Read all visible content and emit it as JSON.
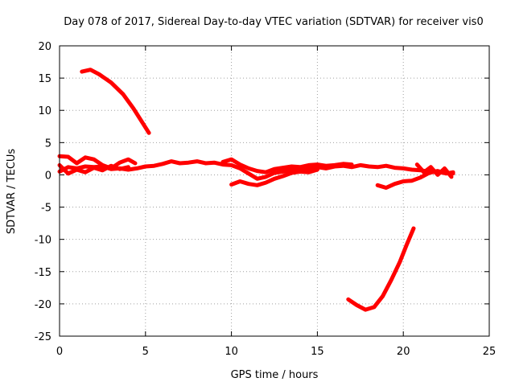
{
  "chart_data": {
    "type": "line",
    "title": "Day 078 of 2017, Sidereal Day-to-day VTEC variation (SDTVAR) for receiver vis0",
    "xlabel": "GPS time / hours",
    "ylabel": "SDTVAR / TECUs",
    "xlim": [
      0,
      25
    ],
    "ylim": [
      -25,
      20
    ],
    "xticks": [
      0,
      5,
      10,
      15,
      20,
      25
    ],
    "yticks": [
      -25,
      -20,
      -15,
      -10,
      -5,
      0,
      5,
      10,
      15,
      20
    ],
    "grid": true,
    "line_color": "#ff0000",
    "series": [
      {
        "name": "descending-arc",
        "points": [
          [
            1.3,
            16.0
          ],
          [
            1.8,
            16.3
          ],
          [
            2.3,
            15.6
          ],
          [
            3.0,
            14.3
          ],
          [
            3.7,
            12.5
          ],
          [
            4.3,
            10.3
          ],
          [
            4.8,
            8.2
          ],
          [
            5.2,
            6.5
          ]
        ]
      },
      {
        "name": "main-band-1",
        "points": [
          [
            0.0,
            2.9
          ],
          [
            0.5,
            2.8
          ],
          [
            1.0,
            1.8
          ],
          [
            1.5,
            2.7
          ],
          [
            2.0,
            2.4
          ],
          [
            2.5,
            1.5
          ],
          [
            3.0,
            1.0
          ],
          [
            3.5,
            1.9
          ],
          [
            4.0,
            2.4
          ],
          [
            4.4,
            1.8
          ]
        ]
      },
      {
        "name": "main-band-2",
        "points": [
          [
            0.0,
            0.5
          ],
          [
            0.5,
            1.2
          ],
          [
            1.0,
            1.0
          ],
          [
            1.5,
            1.3
          ],
          [
            2.0,
            1.2
          ],
          [
            2.5,
            1.3
          ],
          [
            3.0,
            0.9
          ],
          [
            3.5,
            1.0
          ],
          [
            4.0,
            0.8
          ],
          [
            4.5,
            1.0
          ],
          [
            5.0,
            1.3
          ],
          [
            5.5,
            1.4
          ],
          [
            6.0,
            1.7
          ],
          [
            6.5,
            2.1
          ],
          [
            7.0,
            1.8
          ],
          [
            7.5,
            1.9
          ],
          [
            8.0,
            2.1
          ],
          [
            8.5,
            1.8
          ],
          [
            9.0,
            1.9
          ],
          [
            9.5,
            1.6
          ],
          [
            10.0,
            1.5
          ],
          [
            10.5,
            1.0
          ],
          [
            11.0,
            0.2
          ],
          [
            11.5,
            -0.6
          ],
          [
            12.0,
            -0.3
          ],
          [
            12.5,
            0.3
          ],
          [
            13.0,
            0.5
          ],
          [
            13.5,
            0.8
          ],
          [
            14.0,
            0.6
          ],
          [
            14.5,
            0.9
          ],
          [
            15.0,
            1.2
          ],
          [
            15.5,
            1.0
          ],
          [
            16.0,
            1.3
          ],
          [
            16.5,
            1.4
          ],
          [
            17.0,
            1.2
          ],
          [
            17.5,
            1.5
          ],
          [
            18.0,
            1.3
          ],
          [
            18.5,
            1.2
          ],
          [
            19.0,
            1.4
          ],
          [
            19.5,
            1.1
          ],
          [
            20.0,
            1.0
          ],
          [
            20.5,
            0.8
          ],
          [
            21.0,
            0.7
          ],
          [
            21.5,
            0.5
          ],
          [
            22.0,
            0.4
          ],
          [
            22.5,
            0.3
          ],
          [
            22.9,
            0.2
          ]
        ]
      },
      {
        "name": "main-band-3",
        "points": [
          [
            0.0,
            1.5
          ],
          [
            0.5,
            0.2
          ],
          [
            1.0,
            0.8
          ],
          [
            1.5,
            0.4
          ],
          [
            2.0,
            1.1
          ],
          [
            2.5,
            0.7
          ],
          [
            3.0,
            1.4
          ],
          [
            3.5,
            0.9
          ],
          [
            4.0,
            1.2
          ]
        ]
      },
      {
        "name": "midday-dip",
        "points": [
          [
            10.0,
            -1.5
          ],
          [
            10.5,
            -1.0
          ],
          [
            11.0,
            -1.4
          ],
          [
            11.5,
            -1.6
          ],
          [
            12.0,
            -1.2
          ],
          [
            12.5,
            -0.6
          ],
          [
            13.0,
            -0.2
          ],
          [
            13.5,
            0.3
          ],
          [
            14.0,
            0.5
          ],
          [
            14.5,
            0.4
          ],
          [
            15.0,
            0.8
          ]
        ]
      },
      {
        "name": "midday-band",
        "points": [
          [
            9.5,
            2.0
          ],
          [
            10.0,
            2.4
          ],
          [
            10.5,
            1.6
          ],
          [
            11.0,
            1.0
          ],
          [
            11.5,
            0.6
          ],
          [
            12.0,
            0.4
          ],
          [
            12.5,
            0.9
          ],
          [
            13.0,
            1.1
          ],
          [
            13.5,
            1.3
          ],
          [
            14.0,
            1.2
          ],
          [
            14.5,
            1.5
          ],
          [
            15.0,
            1.6
          ],
          [
            15.5,
            1.4
          ],
          [
            16.0,
            1.5
          ],
          [
            16.5,
            1.7
          ],
          [
            17.0,
            1.6
          ]
        ]
      },
      {
        "name": "evening-dip",
        "points": [
          [
            18.5,
            -1.6
          ],
          [
            19.0,
            -2.0
          ],
          [
            19.5,
            -1.4
          ],
          [
            20.0,
            -1.0
          ],
          [
            20.5,
            -0.9
          ],
          [
            21.0,
            -0.4
          ],
          [
            21.5,
            0.3
          ],
          [
            22.0,
            0.6
          ],
          [
            22.5,
            0.2
          ],
          [
            22.9,
            0.4
          ]
        ]
      },
      {
        "name": "evening-band",
        "points": [
          [
            20.8,
            1.6
          ],
          [
            21.2,
            0.4
          ],
          [
            21.6,
            1.2
          ],
          [
            22.0,
            0.0
          ],
          [
            22.4,
            1.0
          ],
          [
            22.8,
            -0.3
          ]
        ]
      },
      {
        "name": "ascending-arc",
        "points": [
          [
            16.8,
            -19.3
          ],
          [
            17.3,
            -20.2
          ],
          [
            17.8,
            -20.9
          ],
          [
            18.3,
            -20.5
          ],
          [
            18.8,
            -18.8
          ],
          [
            19.3,
            -16.3
          ],
          [
            19.8,
            -13.5
          ],
          [
            20.2,
            -10.8
          ],
          [
            20.6,
            -8.3
          ]
        ]
      }
    ]
  }
}
